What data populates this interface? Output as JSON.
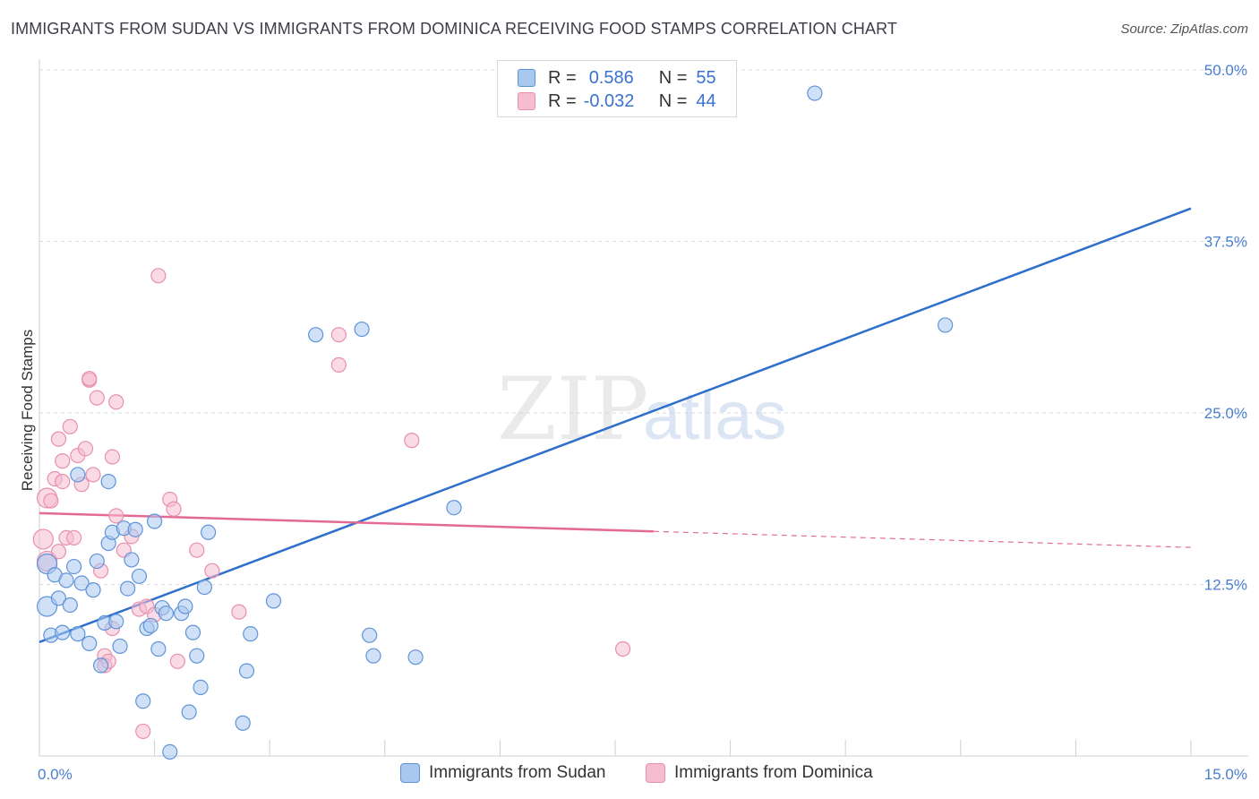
{
  "title": "IMMIGRANTS FROM SUDAN VS IMMIGRANTS FROM DOMINICA RECEIVING FOOD STAMPS CORRELATION CHART",
  "source": "Source: ZipAtlas.com",
  "watermark": {
    "zip": "ZIP",
    "atlas": "atlas"
  },
  "legend": {
    "sudan": {
      "r_label": "R =",
      "r_value": "0.586",
      "n_label": "N =",
      "n_value": "55"
    },
    "dominica": {
      "r_label": "R =",
      "r_value": "-0.032",
      "n_label": "N =",
      "n_value": "44"
    }
  },
  "bottom_legend": {
    "sudan": "Immigrants from Sudan",
    "dominica": "Immigrants from Dominica"
  },
  "colors": {
    "sudan_fill": "#a9c8f0",
    "sudan_stroke": "#5f93d8",
    "sudan_line": "#2f6fcc",
    "dominica_fill": "#f6bcd0",
    "dominica_stroke": "#e88fae",
    "dominica_line": "#e56a93",
    "axis_tick": "#4a7fd0",
    "grid": "#d9d9d9"
  },
  "chart_data": {
    "type": "scatter",
    "title": "IMMIGRANTS FROM SUDAN VS IMMIGRANTS FROM DOMINICA RECEIVING FOOD STAMPS CORRELATION CHART",
    "xlabel": "",
    "ylabel": "Receiving Food Stamps",
    "xlim": [
      0,
      15
    ],
    "ylim": [
      0,
      50
    ],
    "x_tick_labels": [
      "0.0%",
      "15.0%"
    ],
    "y_ticks": [
      12.5,
      25.0,
      37.5,
      50.0
    ],
    "y_tick_labels": [
      "12.5%",
      "25.0%",
      "37.5%",
      "50.0%"
    ],
    "legend_position": "top-center",
    "series": [
      {
        "name": "Immigrants from Sudan",
        "r": 0.586,
        "n": 55,
        "trend": {
          "x": [
            0.0,
            15.0
          ],
          "y": [
            8.3,
            39.9
          ],
          "solid_until": 15.0
        },
        "points": [
          [
            0.1,
            14.0
          ],
          [
            0.1,
            10.9
          ],
          [
            0.15,
            8.8
          ],
          [
            0.2,
            13.2
          ],
          [
            0.25,
            11.5
          ],
          [
            0.3,
            9.0
          ],
          [
            0.35,
            12.8
          ],
          [
            0.4,
            11.0
          ],
          [
            0.45,
            13.8
          ],
          [
            0.5,
            8.9
          ],
          [
            0.55,
            12.6
          ],
          [
            0.65,
            8.2
          ],
          [
            0.7,
            12.1
          ],
          [
            0.75,
            14.2
          ],
          [
            0.8,
            6.6
          ],
          [
            0.85,
            9.7
          ],
          [
            0.9,
            15.5
          ],
          [
            0.95,
            16.3
          ],
          [
            1.0,
            9.8
          ],
          [
            1.05,
            8.0
          ],
          [
            1.1,
            16.6
          ],
          [
            1.15,
            12.2
          ],
          [
            1.2,
            14.3
          ],
          [
            1.25,
            16.5
          ],
          [
            1.3,
            13.1
          ],
          [
            1.35,
            4.0
          ],
          [
            1.4,
            9.3
          ],
          [
            1.45,
            9.5
          ],
          [
            1.5,
            17.1
          ],
          [
            1.55,
            7.8
          ],
          [
            1.6,
            10.8
          ],
          [
            1.65,
            10.4
          ],
          [
            1.7,
            0.3
          ],
          [
            1.85,
            10.4
          ],
          [
            1.9,
            10.9
          ],
          [
            1.95,
            3.2
          ],
          [
            2.0,
            9.0
          ],
          [
            2.05,
            7.3
          ],
          [
            2.1,
            5.0
          ],
          [
            2.15,
            12.3
          ],
          [
            2.2,
            16.3
          ],
          [
            2.65,
            2.4
          ],
          [
            2.7,
            6.2
          ],
          [
            2.75,
            8.9
          ],
          [
            3.05,
            11.3
          ],
          [
            3.6,
            30.7
          ],
          [
            4.2,
            31.1
          ],
          [
            4.3,
            8.8
          ],
          [
            4.35,
            7.3
          ],
          [
            4.9,
            7.2
          ],
          [
            5.4,
            18.1
          ],
          [
            10.1,
            48.3
          ],
          [
            11.8,
            31.4
          ],
          [
            0.5,
            20.5
          ],
          [
            0.9,
            20.0
          ]
        ]
      },
      {
        "name": "Immigrants from Dominica",
        "r": -0.032,
        "n": 44,
        "trend": {
          "x": [
            0.0,
            15.0
          ],
          "y": [
            17.7,
            15.2
          ],
          "solid_until": 8.0
        },
        "points": [
          [
            0.05,
            15.8
          ],
          [
            0.1,
            14.2
          ],
          [
            0.1,
            18.8
          ],
          [
            0.15,
            18.6
          ],
          [
            0.2,
            20.2
          ],
          [
            0.25,
            14.9
          ],
          [
            0.25,
            23.1
          ],
          [
            0.3,
            20.0
          ],
          [
            0.3,
            21.5
          ],
          [
            0.35,
            15.9
          ],
          [
            0.4,
            24.0
          ],
          [
            0.45,
            15.9
          ],
          [
            0.5,
            21.9
          ],
          [
            0.55,
            19.8
          ],
          [
            0.6,
            22.4
          ],
          [
            0.65,
            27.4
          ],
          [
            0.65,
            27.5
          ],
          [
            0.7,
            20.5
          ],
          [
            0.75,
            26.1
          ],
          [
            0.8,
            13.5
          ],
          [
            0.85,
            7.3
          ],
          [
            0.85,
            6.6
          ],
          [
            0.9,
            6.9
          ],
          [
            0.95,
            9.3
          ],
          [
            0.95,
            21.8
          ],
          [
            1.0,
            17.5
          ],
          [
            1.0,
            25.8
          ],
          [
            1.1,
            15.0
          ],
          [
            1.2,
            16.0
          ],
          [
            1.3,
            10.7
          ],
          [
            1.35,
            1.8
          ],
          [
            1.4,
            10.9
          ],
          [
            1.5,
            10.3
          ],
          [
            1.55,
            35.0
          ],
          [
            1.7,
            18.7
          ],
          [
            1.75,
            18.0
          ],
          [
            1.8,
            6.9
          ],
          [
            2.05,
            15.0
          ],
          [
            2.25,
            13.5
          ],
          [
            2.6,
            10.5
          ],
          [
            3.9,
            30.7
          ],
          [
            3.9,
            28.5
          ],
          [
            4.85,
            23.0
          ],
          [
            7.6,
            7.8
          ]
        ]
      }
    ]
  }
}
